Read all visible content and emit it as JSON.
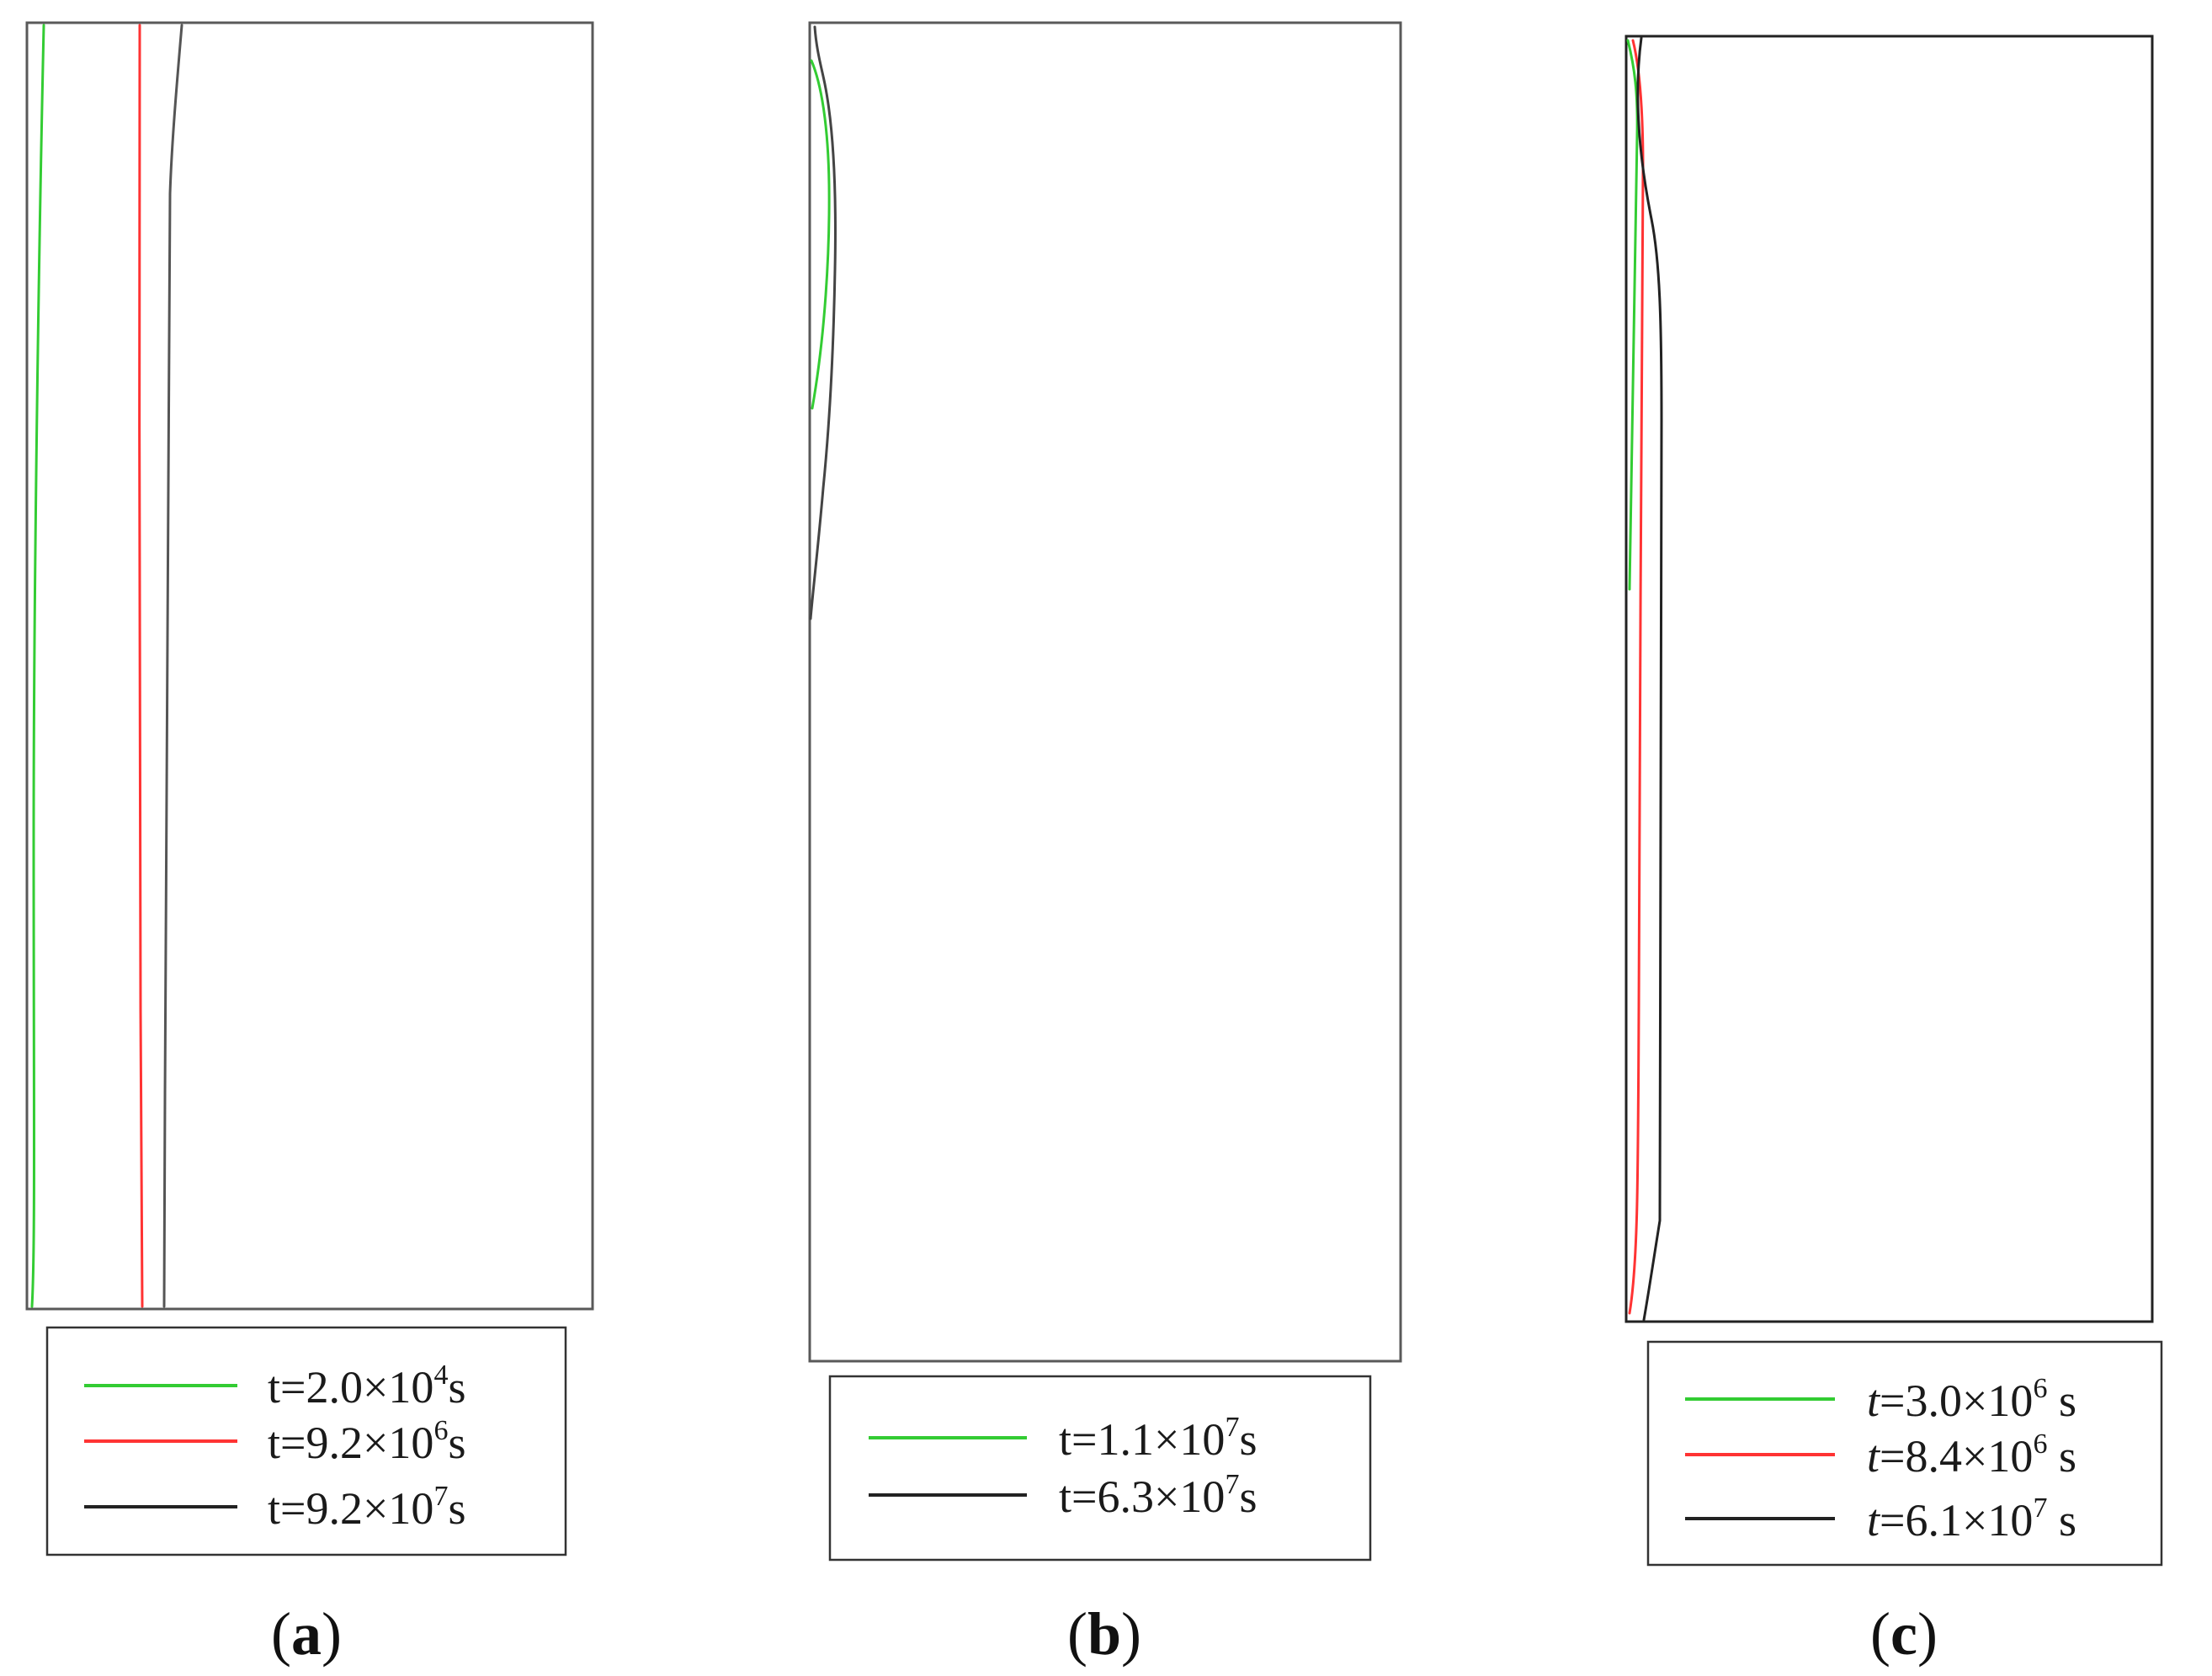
{
  "colors": {
    "green": "#33cc33",
    "red": "#ff3333",
    "black": "#2b2b2b"
  },
  "panels": [
    {
      "id": "a",
      "caption_open": "(",
      "caption_letter": "a",
      "caption_close": ")",
      "legend": [
        {
          "color": "green",
          "prefix": "t",
          "value": "=2.0×10",
          "exp": "4",
          "unit": "s"
        },
        {
          "color": "red",
          "prefix": "t",
          "value": "=9.2×10",
          "exp": "6",
          "unit": "s"
        },
        {
          "color": "black",
          "prefix": "t",
          "value": "=9.2×10",
          "exp": "7",
          "unit": "s"
        }
      ]
    },
    {
      "id": "b",
      "caption_open": "(",
      "caption_letter": "b",
      "caption_close": ")",
      "legend": [
        {
          "color": "green",
          "prefix": "t",
          "value": "=1.1×10",
          "exp": "7",
          "unit": "s"
        },
        {
          "color": "black",
          "prefix": "t",
          "value": "=6.3×10",
          "exp": "7",
          "unit": "s"
        }
      ]
    },
    {
      "id": "c",
      "caption_open": "(",
      "caption_letter": "c",
      "caption_close": ")",
      "legend": [
        {
          "color": "green",
          "prefix": "t",
          "value": "=3.0×10",
          "exp": "6",
          "unit": " s"
        },
        {
          "color": "red",
          "prefix": "t",
          "value": "=8.4×10",
          "exp": "6",
          "unit": " s"
        },
        {
          "color": "black",
          "prefix": "t",
          "value": "=6.1×10",
          "exp": "7",
          "unit": " s"
        }
      ]
    }
  ]
}
